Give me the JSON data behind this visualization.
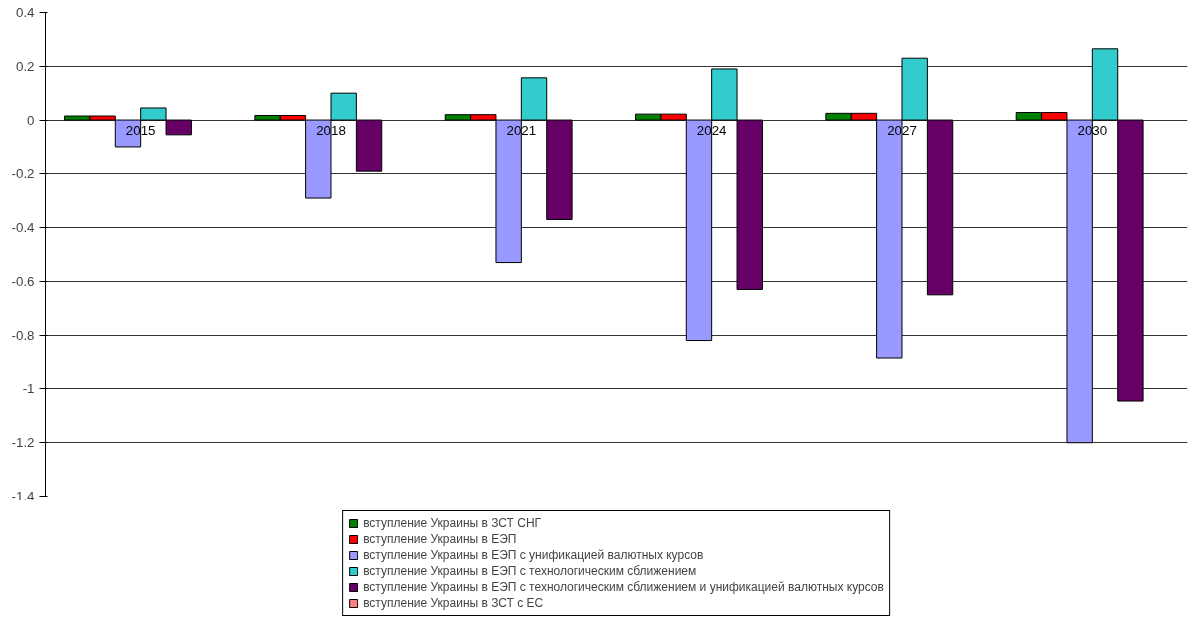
{
  "chart_data": {
    "type": "bar",
    "categories": [
      "2015",
      "2018",
      "2021",
      "2024",
      "2027",
      "2030"
    ],
    "series": [
      {
        "name": "вступление Украины в ЗСТ СНГ",
        "color": "#008000",
        "values": [
          0.015,
          0.017,
          0.02,
          0.022,
          0.025,
          0.028
        ]
      },
      {
        "name": "вступление Украины в ЕЭП",
        "color": "#ff0000",
        "values": [
          0.015,
          0.017,
          0.02,
          0.022,
          0.025,
          0.028
        ]
      },
      {
        "name": "вступление Украины в ЕЭП с унификацией валютных курсов",
        "color": "#9999ff",
        "values": [
          -0.1,
          -0.29,
          -0.53,
          -0.82,
          -0.885,
          -1.2
        ]
      },
      {
        "name": "вступление Украины в ЕЭП с технологическим сближением",
        "color": "#33cccc",
        "values": [
          0.045,
          0.1,
          0.157,
          0.19,
          0.23,
          0.265
        ]
      },
      {
        "name": "вступление Украины в ЕЭП с технологическим сближением и унификацией валютных курсов",
        "color": "#660066",
        "values": [
          -0.055,
          -0.19,
          -0.37,
          -0.63,
          -0.65,
          -1.045
        ]
      },
      {
        "name": "вступление Украины в ЗСТ с ЕС",
        "color": "#ff8080",
        "values": [
          null,
          null,
          null,
          null,
          null,
          null
        ]
      }
    ],
    "ylim": [
      -1.4,
      0.4
    ],
    "yticks": [
      {
        "value": -1.4,
        "label": "-1.4"
      },
      {
        "value": -1.2,
        "label": "-1.2"
      },
      {
        "value": -1,
        "label": "-1"
      },
      {
        "value": -0.8,
        "label": "-0.8"
      },
      {
        "value": -0.6,
        "label": "-0.6"
      },
      {
        "value": -0.4,
        "label": "-0.4"
      },
      {
        "value": -0.2,
        "label": "-0.2"
      },
      {
        "value": 0,
        "label": "0"
      },
      {
        "value": 0.2,
        "label": "0.2"
      },
      {
        "value": 0.4,
        "label": "0.4"
      }
    ],
    "grid": "y",
    "legend": "bottom"
  }
}
